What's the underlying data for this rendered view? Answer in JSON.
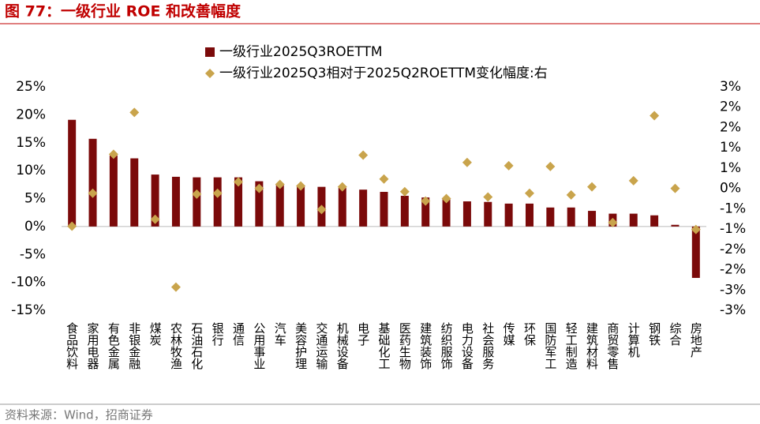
{
  "chart_data": {
    "type": "bar",
    "title": "图 77：一级行业 ROE 和改善幅度",
    "source": "资料来源：Wind，招商证券",
    "categories": [
      "食品饮料",
      "家用电器",
      "有色金属",
      "非银金融",
      "煤炭",
      "农林牧渔",
      "石油石化",
      "银行",
      "通信",
      "公用事业",
      "汽车",
      "美容护理",
      "交通运输",
      "机械设备",
      "电子",
      "基础化工",
      "医药生物",
      "建筑装饰",
      "纺织服饰",
      "电力设备",
      "社会服务",
      "传媒",
      "环保",
      "国防军工",
      "轻工制造",
      "建筑材料",
      "商贸零售",
      "计算机",
      "钢铁",
      "综合",
      "房地产"
    ],
    "series": [
      {
        "name": "一级行业2025Q3ROETTM",
        "color": "#7b0a0a",
        "type": "bar",
        "values": [
          19.1,
          15.7,
          12.7,
          12.2,
          9.3,
          8.9,
          8.8,
          8.8,
          8.8,
          8.1,
          7.6,
          7.3,
          7.1,
          6.9,
          6.6,
          6.2,
          5.5,
          5.2,
          4.9,
          4.5,
          4.4,
          4.1,
          4.1,
          3.4,
          3.4,
          2.8,
          2.3,
          2.3,
          2.0,
          0.3,
          -9.2
        ]
      },
      {
        "name": "一级行业2025Q3相对于2025Q2ROETTM变化幅度:右",
        "color": "#c9a44c",
        "type": "scatter",
        "axis": "y2",
        "values": [
          -0.93,
          -0.12,
          0.84,
          1.87,
          -0.76,
          -2.43,
          -0.14,
          -0.12,
          0.16,
          0.0,
          0.1,
          0.06,
          -0.52,
          0.04,
          0.82,
          0.23,
          -0.08,
          -0.31,
          -0.25,
          0.64,
          -0.21,
          0.56,
          -0.12,
          0.54,
          -0.16,
          0.04,
          -0.84,
          0.19,
          1.79,
          0.0,
          -1.01
        ]
      }
    ],
    "ylim": [
      -15,
      25
    ],
    "yticks": [
      {
        "value": -15,
        "label": "-15%"
      },
      {
        "value": -10,
        "label": "-10%"
      },
      {
        "value": -5,
        "label": "-5%"
      },
      {
        "value": 0,
        "label": "0%"
      },
      {
        "value": 5,
        "label": "5%"
      },
      {
        "value": 10,
        "label": "10%"
      },
      {
        "value": 15,
        "label": "15%"
      },
      {
        "value": 20,
        "label": "20%"
      },
      {
        "value": 25,
        "label": "25%"
      }
    ],
    "y2lim": [
      -3,
      2.5
    ],
    "y2ticks": [
      {
        "value": -3,
        "label": "-3%"
      },
      {
        "value": -2.5,
        "label": "-3%"
      },
      {
        "value": -2,
        "label": "-2%"
      },
      {
        "value": -1.5,
        "label": "-2%"
      },
      {
        "value": -1,
        "label": "-1%"
      },
      {
        "value": -0.5,
        "label": "-1%"
      },
      {
        "value": 0,
        "label": "0%"
      },
      {
        "value": 0.5,
        "label": "1%"
      },
      {
        "value": 1,
        "label": "1%"
      },
      {
        "value": 1.5,
        "label": "2%"
      },
      {
        "value": 2,
        "label": "2%"
      },
      {
        "value": 2.5,
        "label": "3%"
      }
    ],
    "grid": false
  }
}
